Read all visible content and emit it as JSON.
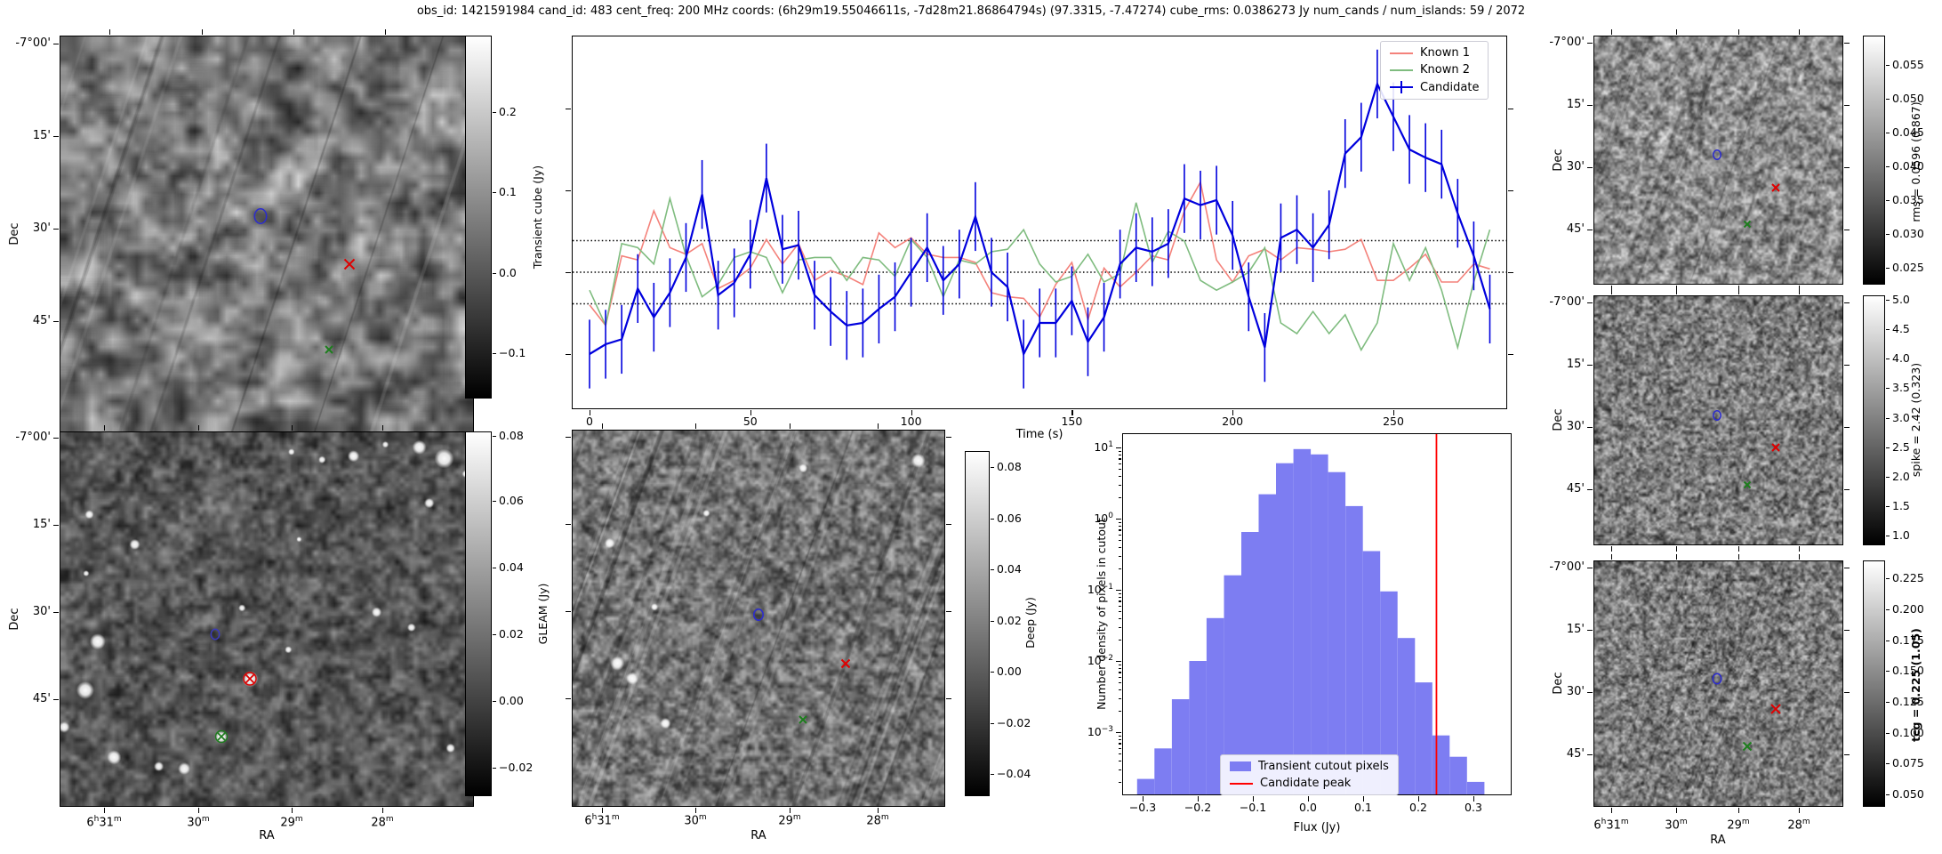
{
  "title": "obs_id: 1421591984 cand_id: 483 cent_freq: 200 MHz coords: (6h29m19.55046611s, -7d28m21.86864794s) (97.3315, -7.47274) cube_rms: 0.0386273 Jy num_cands / num_islands: 59 / 2072",
  "colors": {
    "known1": "#f4827b",
    "known2": "#7fbc7f",
    "candidate": "#0000dd",
    "hist_fill": "#7d7df2",
    "candidate_peak_line": "#ff0000",
    "marker_blue": "#2b2bd0",
    "marker_red": "#e00000",
    "marker_green": "#1e7d1e"
  },
  "lightcurve": {
    "xlabel": "Time (s)",
    "x_ticks": [
      "0",
      "50",
      "100",
      "150",
      "200",
      "250"
    ],
    "legend": [
      {
        "label": "Known 1",
        "style": "line"
      },
      {
        "label": "Known 2",
        "style": "line"
      },
      {
        "label": "Candidate",
        "style": "errorbar"
      }
    ]
  },
  "histogram": {
    "xlabel": "Flux (Jy)",
    "ylabel": "Number density of pixels in cutout",
    "x_ticks": [
      "−0.3",
      "−0.2",
      "−0.1",
      "0.0",
      "0.1",
      "0.2",
      "0.3"
    ],
    "y_tick_exponents": [
      1,
      0,
      -1,
      -2,
      -3
    ],
    "legend": [
      "Transient cutout pixels",
      "Candidate peak"
    ]
  },
  "chart_data": [
    {
      "type": "line",
      "title": "",
      "xlabel": "Time (s)",
      "ylabel": "",
      "xlim": [
        -8,
        286
      ],
      "ylim": [
        -0.167,
        0.289
      ],
      "x_start": 0,
      "x_step": 5,
      "hlines": [
        0.0386,
        0.0,
        -0.0386
      ],
      "legend_position": "upper right",
      "series": [
        {
          "name": "Known 1",
          "color": "#f4827b",
          "values": [
            -0.04,
            -0.065,
            0.02,
            0.015,
            0.075,
            0.03,
            0.022,
            0.035,
            -0.02,
            -0.01,
            0.005,
            0.04,
            0.01,
            0.035,
            -0.01,
            0.002,
            -0.005,
            -0.015,
            0.048,
            0.03,
            0.042,
            0.022,
            0.018,
            0.018,
            0.012,
            -0.025,
            -0.03,
            -0.032,
            -0.055,
            -0.015,
            0.012,
            -0.058,
            0.005,
            -0.018,
            0.0,
            0.02,
            0.015,
            0.075,
            0.11,
            0.015,
            -0.012,
            0.02,
            0.028,
            0.015,
            0.03,
            0.028,
            0.025,
            0.028,
            0.04,
            -0.01,
            -0.01,
            0.005,
            0.022,
            -0.012,
            -0.012,
            0.01,
            0.004
          ]
        },
        {
          "name": "Known 2",
          "color": "#7fbc7f",
          "values": [
            -0.022,
            -0.065,
            0.035,
            0.03,
            0.01,
            0.09,
            0.02,
            -0.03,
            -0.015,
            0.018,
            0.025,
            0.018,
            -0.025,
            0.015,
            0.018,
            0.018,
            -0.01,
            0.018,
            0.015,
            -0.005,
            0.04,
            0.018,
            -0.03,
            0.015,
            0.01,
            0.025,
            0.028,
            0.052,
            0.01,
            -0.012,
            -0.005,
            0.022,
            -0.012,
            -0.002,
            0.085,
            0.012,
            0.05,
            0.038,
            -0.01,
            -0.022,
            -0.012,
            0.0,
            0.03,
            -0.062,
            -0.075,
            -0.048,
            -0.075,
            -0.052,
            -0.095,
            -0.062,
            0.035,
            -0.01,
            0.03,
            -0.022,
            -0.092,
            -0.012,
            0.052
          ]
        },
        {
          "name": "Candidate",
          "color": "#0000dd",
          "yerr": 0.042,
          "values": [
            -0.1,
            -0.088,
            -0.082,
            -0.02,
            -0.055,
            -0.025,
            0.018,
            0.095,
            -0.028,
            -0.013,
            0.022,
            0.115,
            0.028,
            0.033,
            -0.028,
            -0.048,
            -0.065,
            -0.062,
            -0.045,
            -0.03,
            0.0,
            0.03,
            -0.01,
            0.01,
            0.068,
            0.0,
            -0.018,
            -0.1,
            -0.062,
            -0.062,
            -0.035,
            -0.085,
            -0.055,
            0.01,
            0.03,
            0.025,
            0.035,
            0.09,
            0.082,
            0.088,
            0.045,
            -0.03,
            -0.092,
            0.042,
            0.052,
            0.03,
            0.058,
            0.145,
            0.165,
            0.23,
            0.19,
            0.15,
            0.14,
            0.132,
            0.072,
            0.02,
            -0.045
          ]
        }
      ]
    },
    {
      "type": "bar",
      "title": "",
      "xlabel": "Flux (Jy)",
      "ylabel": "Number density of pixels in cutout",
      "yscale": "log",
      "xlim": [
        -0.345,
        0.345
      ],
      "ylim": [
        0.00013,
        16
      ],
      "bin_width": 0.0315,
      "bin_left_edges": [
        -0.31,
        -0.2785,
        -0.247,
        -0.2155,
        -0.184,
        -0.1525,
        -0.121,
        -0.0895,
        -0.058,
        -0.0265,
        0.005,
        0.0365,
        0.068,
        0.0995,
        0.131,
        0.1625,
        0.194,
        0.2255,
        0.257,
        0.2885
      ],
      "densities": [
        0.00022,
        0.00059,
        0.0029,
        0.01,
        0.04,
        0.16,
        0.65,
        2.2,
        6.0,
        9.5,
        8.0,
        4.5,
        1.5,
        0.35,
        0.095,
        0.021,
        0.005,
        0.0009,
        0.00045,
        0.0002
      ],
      "vline": {
        "x": 0.233,
        "label": "Candidate peak"
      }
    }
  ],
  "cutouts": {
    "transient": {
      "ylabel": "Dec",
      "dec_ticks": [
        "-7°00'",
        "15'",
        "30'",
        "45'"
      ],
      "markers": [
        {
          "shape": "circle",
          "color": "#2b2bd0",
          "x": 0.485,
          "y": 0.455,
          "size": 16
        },
        {
          "shape": "x",
          "color": "#e00000",
          "x": 0.7,
          "y": 0.575,
          "size": 13
        },
        {
          "shape": "x",
          "color": "#1e7d1e",
          "x": 0.65,
          "y": 0.79,
          "size": 10
        }
      ]
    },
    "gleam": {
      "ylabel": "Dec",
      "xlabel": "RA",
      "dec_ticks": [
        "-7°00'",
        "15'",
        "30'",
        "45'"
      ],
      "ra_ticks": [
        "6h31m",
        "30m",
        "29m",
        "28m"
      ],
      "markers": [
        {
          "shape": "circle",
          "color": "#3a3ab8",
          "x": 0.375,
          "y": 0.54,
          "size": 12
        },
        {
          "shape": "circled-x",
          "color": "#e00000",
          "x": 0.46,
          "y": 0.66,
          "size": 16
        },
        {
          "shape": "circled-x",
          "color": "#1e7d1e",
          "x": 0.39,
          "y": 0.815,
          "size": 15
        }
      ]
    },
    "deep": {
      "xlabel": "RA",
      "ra_ticks": [
        "6h31m",
        "30m",
        "29m",
        "28m"
      ],
      "markers": [
        {
          "shape": "circle",
          "color": "#2b2bd0",
          "x": 0.5,
          "y": 0.49,
          "size": 13
        },
        {
          "shape": "x",
          "color": "#e00000",
          "x": 0.735,
          "y": 0.62,
          "size": 11
        },
        {
          "shape": "x",
          "color": "#1e7d1e",
          "x": 0.62,
          "y": 0.77,
          "size": 10
        }
      ]
    },
    "rms": {
      "ylabel": "Dec",
      "dec_ticks": [
        "-7°00'",
        "15'",
        "30'",
        "45'"
      ],
      "markers": [
        {
          "shape": "circle",
          "color": "#2b2bd0",
          "x": 0.494,
          "y": 0.48,
          "size": 11
        },
        {
          "shape": "x",
          "color": "#e00000",
          "x": 0.73,
          "y": 0.61,
          "size": 10
        },
        {
          "shape": "x",
          "color": "#1e7d1e",
          "x": 0.617,
          "y": 0.76,
          "size": 9
        }
      ]
    },
    "spike": {
      "ylabel": "Dec",
      "dec_ticks": [
        "-7°00'",
        "15'",
        "30'",
        "45'"
      ],
      "markers": [
        {
          "shape": "circle",
          "color": "#2b2bd0",
          "x": 0.494,
          "y": 0.48,
          "size": 11
        },
        {
          "shape": "x",
          "color": "#e00000",
          "x": 0.73,
          "y": 0.61,
          "size": 10
        },
        {
          "shape": "x",
          "color": "#1e7d1e",
          "x": 0.617,
          "y": 0.76,
          "size": 9
        }
      ]
    },
    "tcg": {
      "ylabel": "Dec",
      "xlabel": "RA",
      "dec_ticks": [
        "-7°00'",
        "15'",
        "30'",
        "45'"
      ],
      "ra_ticks": [
        "6h31m",
        "30m",
        "29m",
        "28m"
      ],
      "markers": [
        {
          "shape": "circle",
          "color": "#2b2bd0",
          "x": 0.494,
          "y": 0.48,
          "size": 12
        },
        {
          "shape": "x",
          "color": "#e00000",
          "x": 0.73,
          "y": 0.605,
          "size": 12
        },
        {
          "shape": "x",
          "color": "#1e7d1e",
          "x": 0.615,
          "y": 0.755,
          "size": 11
        }
      ]
    }
  },
  "colorbars": {
    "transient": {
      "label": "Transient cube (Jy)",
      "ticks": [
        "0.2",
        "0.1",
        "0.0",
        "−0.1"
      ]
    },
    "gleam": {
      "label": "GLEAM (Jy)",
      "ticks": [
        "0.08",
        "0.06",
        "0.04",
        "0.02",
        "0.00",
        "−0.02"
      ]
    },
    "deep": {
      "label": "Deep (Jy)",
      "ticks": [
        "0.08",
        "0.06",
        "0.04",
        "0.02",
        "0.00",
        "−0.02",
        "−0.04"
      ]
    },
    "rms": {
      "label": "rms = 0.0596 (0.867)",
      "ticks": [
        "0.055",
        "0.050",
        "0.045",
        "0.040",
        "0.035",
        "0.030",
        "0.025"
      ]
    },
    "spike": {
      "label": "spike = 2.42 (0.323)",
      "ticks": [
        "5.0",
        "4.5",
        "4.0",
        "3.5",
        "3.0",
        "2.5",
        "2.0",
        "1.5",
        "1.0"
      ]
    },
    "tcg": {
      "label": "tcg = 0.225 (1.05)",
      "bold": true,
      "ticks": [
        "0.225",
        "0.200",
        "0.175",
        "0.150",
        "0.125",
        "0.100",
        "0.075",
        "0.050"
      ]
    }
  }
}
